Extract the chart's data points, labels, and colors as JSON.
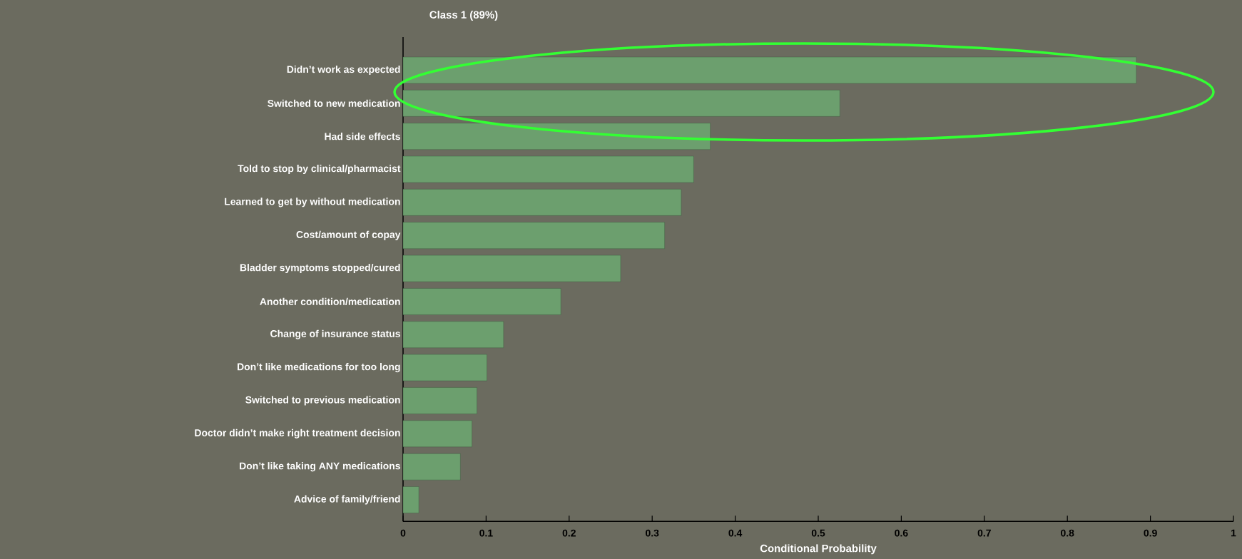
{
  "chart_data": {
    "type": "bar",
    "orientation": "horizontal",
    "title": "Class 1 (89%)",
    "xlabel": "Conditional Probability",
    "categories": [
      "Didn’t work as expected",
      "Switched to new medication",
      "Had side effects",
      "Told to stop by clinical/pharmacist",
      "Learned to get by without medication",
      "Cost/amount of copay",
      "Bladder symptoms stopped/cured",
      "Another condition/medication",
      "Change of insurance status",
      "Don’t like medications for too long",
      "Switched to previous medication",
      "Doctor didn’t make right treatment decision",
      "Don’t like taking ANY medications",
      "Advice of family/friend"
    ],
    "values": [
      0.883,
      0.526,
      0.37,
      0.35,
      0.335,
      0.315,
      0.262,
      0.19,
      0.121,
      0.101,
      0.089,
      0.083,
      0.069,
      0.019
    ],
    "color": "#6c9f6e",
    "xlim": [
      0,
      1
    ],
    "xticks": [
      0,
      0.1,
      0.2,
      0.3,
      0.4,
      0.5,
      0.6,
      0.7,
      0.8,
      0.9,
      1
    ]
  }
}
